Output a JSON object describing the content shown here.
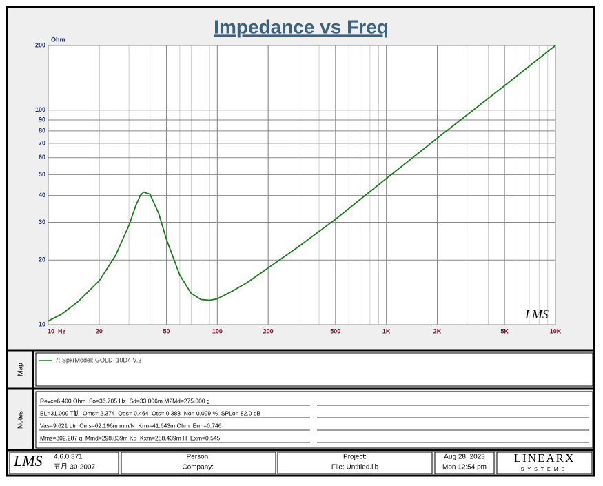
{
  "chart_data": {
    "type": "line",
    "title": "Impedance vs Freq",
    "y_unit": "Ohm",
    "x": [
      10,
      12,
      15,
      20,
      25,
      30,
      33,
      35,
      36.7,
      40,
      45,
      50,
      60,
      70,
      80,
      90,
      100,
      120,
      150,
      200,
      300,
      500,
      1000,
      2000,
      5000,
      10000
    ],
    "series": [
      {
        "name": "7: SpkrModel: GOLD  10D4 V.2",
        "color": "#1a7a1a",
        "values": [
          10.4,
          11.2,
          12.8,
          16,
          21,
          29,
          36,
          40,
          41.5,
          40.5,
          33,
          25,
          17,
          14,
          13.1,
          13,
          13.2,
          14.2,
          15.7,
          18.4,
          23,
          31,
          48,
          74,
          130,
          200
        ]
      }
    ],
    "xlim": [
      10,
      10000
    ],
    "ylim": [
      10,
      200
    ],
    "x_log": true,
    "y_log": true,
    "grid": true,
    "xticks": [
      {
        "value": 10,
        "label": "10  Hz"
      },
      20,
      50,
      100,
      200,
      500,
      {
        "value": 1000,
        "label": "1K"
      },
      {
        "value": 2000,
        "label": "2K"
      },
      {
        "value": 5000,
        "label": "5K"
      },
      {
        "value": 10000,
        "label": "10K"
      }
    ],
    "yticks": [
      10,
      20,
      30,
      40,
      50,
      60,
      70,
      80,
      90,
      100,
      200
    ]
  },
  "panels": {
    "map_label": "Map",
    "notes_label": "Notes",
    "notes": [
      "Revc=6.400 Ohm  Fo=36.705 Hz  Sd=33.006m M?Md=275.000 g",
      "BL=31.009 T勤  Qms= 2.374  Qes= 0.464  Qts= 0.388  No= 0.099 %  SPLo= 82.0 dB",
      "Vas=9.621 Ltr  Cms=62.196m mm/N  Krm=41.643m Ohm  Erm=0.746",
      "Mms=302.287 g  Mmd=298.839m Kg  Kxm=288.439m H  Exm=0.545"
    ]
  },
  "footer": {
    "logo": "LMS",
    "version": "4.6.0.371",
    "build_date": "五月-30-2007",
    "person": "Person:",
    "company": "Company:",
    "project": "Project:",
    "file": "File: Untitled.lib",
    "date": "Aug 28, 2023",
    "time": "Mon 12:54 pm",
    "brand": "LINEARX",
    "brand_sub": "SYSTEMS",
    "watermark": "LMS"
  }
}
